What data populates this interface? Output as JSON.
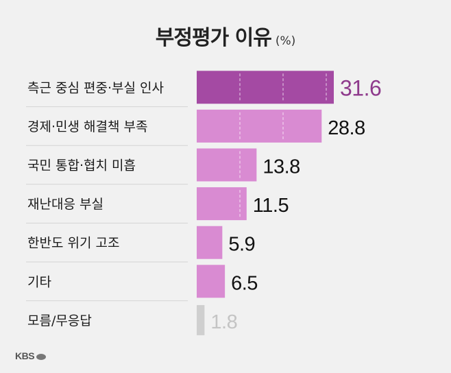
{
  "title": "부정평가 이유",
  "unit": "(%)",
  "logo": "KBS",
  "colors": {
    "highlight": "#a44aa3",
    "bar": "#d98bd2",
    "muted": "#cfcfcf",
    "highlight_text": "#8e3a8c",
    "text": "#111111",
    "muted_text": "#c4c4c4"
  },
  "chart_data": {
    "type": "bar",
    "orientation": "horizontal",
    "categories": [
      "측근 중심 편중·부실 인사",
      "경제·민생 해결책 부족",
      "국민 통합·협치 미흡",
      "재난대응 부실",
      "한반도 위기 고조",
      "기타",
      "모름/무응답"
    ],
    "values": [
      31.6,
      28.8,
      13.8,
      11.5,
      5.9,
      6.5,
      1.8
    ],
    "value_labels": [
      "31.6",
      "28.8",
      "13.8",
      "11.5",
      "5.9",
      "6.5",
      "1.8"
    ],
    "highlight_index": 0,
    "muted_index": 6,
    "xlim": [
      0,
      31.6
    ]
  }
}
